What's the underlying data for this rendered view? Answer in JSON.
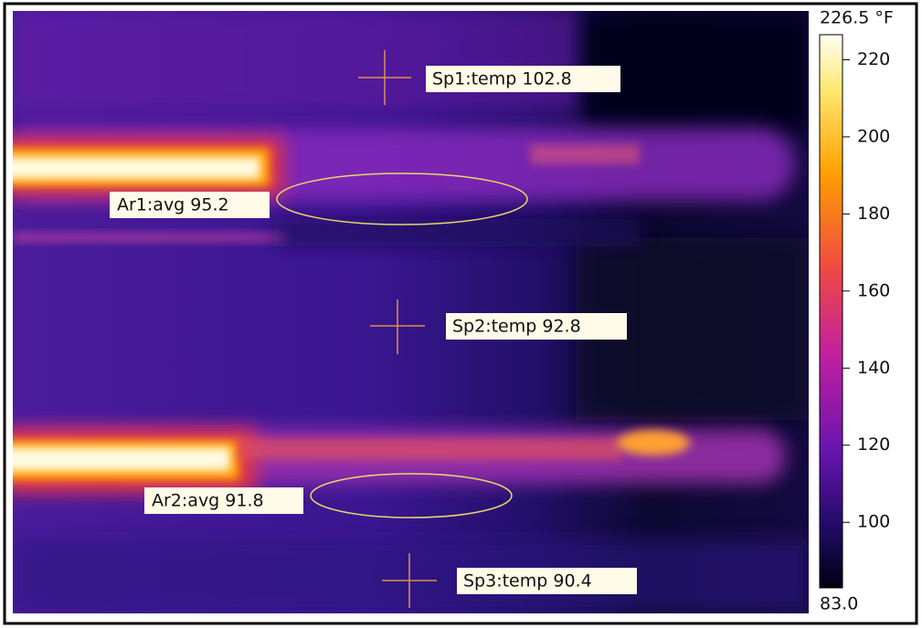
{
  "measurements": [
    {
      "label": "Sp1:temp 102.8"
    },
    {
      "label": "Ar1:avg 95.2"
    },
    {
      "label": "Sp2:temp 92.8"
    },
    {
      "label": "Ar2:avg 91.8"
    },
    {
      "label": "Sp3:temp 90.4"
    }
  ],
  "colorbar": {
    "max": {
      "value": 226.5,
      "label": "226.5 °F"
    },
    "min": {
      "value": 83.0,
      "label": "83.0"
    },
    "ticks": [
      220,
      200,
      180,
      160,
      140,
      120,
      100
    ]
  }
}
